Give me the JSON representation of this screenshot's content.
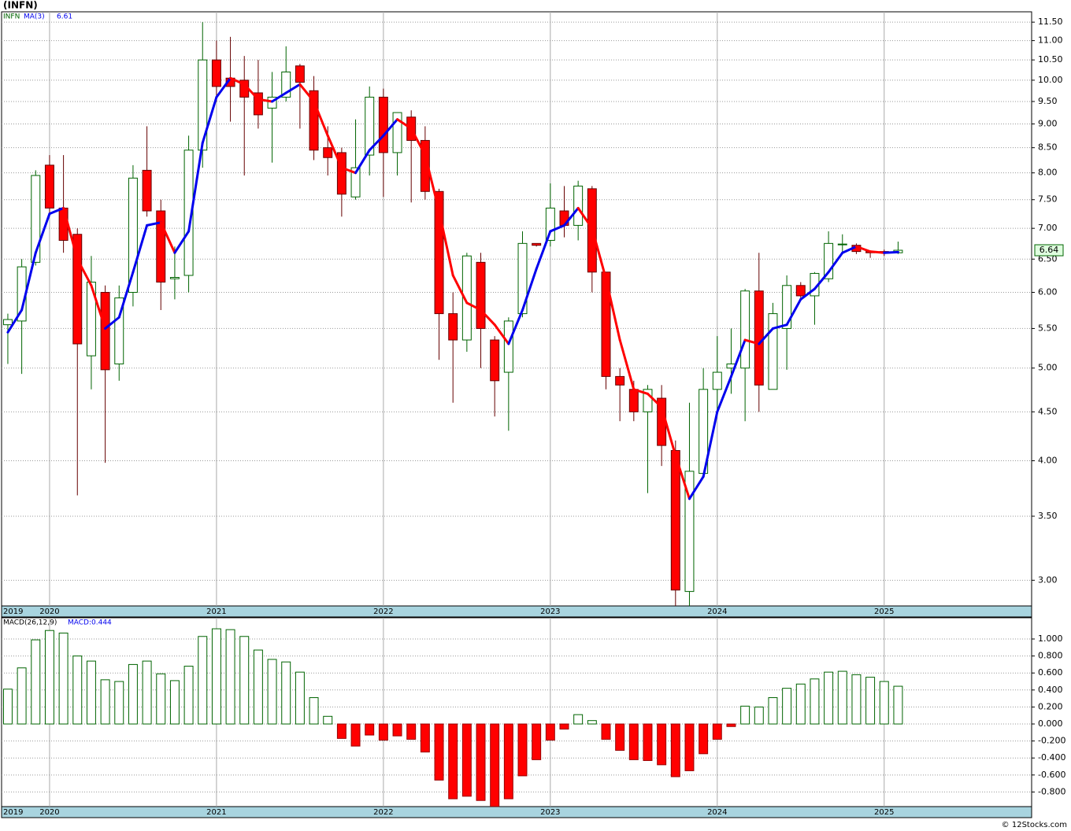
{
  "chart_data": [
    {
      "type": "candlestick",
      "title": "(INFN)",
      "name": "INFN",
      "log_scale": true,
      "grid": true,
      "up_color": "#006400",
      "down_color": "#ff0000",
      "open": [
        5.55,
        5.6,
        6.45,
        8.15,
        7.35,
        6.9,
        5.15,
        6.0,
        5.05,
        6.0,
        8.05,
        7.3,
        6.2,
        6.25,
        8.45,
        10.5,
        10.05,
        10.0,
        9.7,
        9.35,
        9.6,
        10.35,
        9.75,
        8.5,
        8.4,
        7.55,
        8.35,
        9.6,
        8.4,
        9.15,
        8.65,
        7.65,
        5.7,
        5.35,
        6.45,
        5.35,
        4.95,
        5.7,
        6.75,
        6.8,
        7.3,
        7.05,
        7.7,
        6.3,
        4.9,
        4.75,
        4.5,
        4.65,
        4.1,
        2.92,
        3.88,
        4.75,
        5.0,
        5.0,
        6.02,
        4.75,
        5.5,
        6.1,
        5.95,
        6.2,
        6.73,
        6.72,
        6.62,
        6.62,
        6.6
      ],
      "high": [
        5.7,
        6.5,
        8.05,
        8.35,
        8.35,
        7.0,
        6.55,
        6.1,
        6.1,
        8.15,
        8.95,
        7.5,
        6.7,
        8.75,
        11.5,
        11.0,
        11.1,
        10.6,
        10.5,
        10.2,
        10.85,
        10.4,
        10.1,
        8.95,
        8.5,
        9.1,
        9.85,
        9.8,
        9.25,
        9.3,
        8.95,
        7.7,
        6.0,
        6.6,
        6.6,
        5.4,
        5.65,
        6.95,
        6.75,
        7.8,
        7.75,
        7.85,
        7.75,
        6.3,
        5.0,
        4.85,
        4.8,
        4.8,
        4.2,
        4.6,
        5.0,
        5.4,
        5.5,
        6.05,
        6.6,
        5.85,
        6.25,
        6.15,
        6.3,
        6.95,
        6.9,
        6.75,
        6.63,
        6.65,
        6.78
      ],
      "low": [
        5.05,
        4.93,
        6.4,
        7.2,
        6.6,
        3.68,
        4.75,
        3.98,
        4.85,
        5.8,
        7.2,
        5.75,
        5.9,
        6.0,
        8.1,
        9.5,
        9.05,
        7.95,
        8.9,
        8.2,
        9.5,
        8.9,
        8.25,
        7.95,
        7.2,
        7.5,
        7.95,
        7.55,
        7.95,
        7.45,
        7.5,
        5.1,
        4.6,
        5.2,
        5.0,
        4.45,
        4.3,
        5.65,
        6.7,
        6.7,
        6.85,
        6.8,
        6.0,
        4.75,
        4.4,
        4.4,
        3.7,
        3.95,
        2.82,
        2.82,
        3.85,
        4.5,
        4.7,
        4.4,
        4.5,
        4.75,
        4.98,
        5.9,
        5.55,
        6.15,
        6.6,
        6.58,
        6.52,
        6.55,
        6.58
      ],
      "close": [
        5.62,
        6.38,
        7.95,
        7.35,
        6.8,
        5.3,
        6.15,
        4.98,
        5.92,
        7.9,
        7.3,
        6.15,
        6.22,
        8.45,
        10.5,
        9.85,
        9.85,
        9.6,
        9.2,
        9.6,
        10.2,
        9.95,
        8.45,
        8.3,
        7.6,
        8.1,
        9.6,
        8.4,
        9.25,
        8.65,
        7.65,
        5.7,
        5.35,
        6.55,
        5.5,
        4.85,
        5.6,
        6.75,
        6.72,
        7.35,
        7.05,
        7.75,
        6.3,
        4.9,
        4.8,
        4.5,
        4.75,
        4.15,
        2.93,
        3.9,
        4.75,
        4.95,
        5.05,
        6.02,
        4.8,
        5.7,
        6.1,
        5.95,
        6.28,
        6.75,
        6.74,
        6.62,
        6.6,
        6.6,
        6.64
      ],
      "series": [
        {
          "name": "MA(3)",
          "color": "#0000ee",
          "down_color": "#ff0000",
          "values": [
            5.45,
            5.75,
            6.6,
            7.25,
            7.35,
            6.5,
            6.1,
            5.5,
            5.65,
            6.3,
            7.05,
            7.1,
            6.6,
            6.95,
            8.6,
            9.6,
            10.05,
            9.9,
            9.55,
            9.5,
            9.7,
            9.9,
            9.5,
            8.75,
            8.1,
            8.0,
            8.45,
            8.75,
            9.1,
            8.9,
            8.35,
            7.3,
            6.25,
            5.85,
            5.75,
            5.55,
            5.3,
            5.75,
            6.35,
            6.95,
            7.05,
            7.35,
            7.0,
            6.2,
            5.35,
            4.75,
            4.7,
            4.55,
            4.05,
            3.65,
            3.85,
            4.5,
            4.9,
            5.35,
            5.3,
            5.5,
            5.55,
            5.9,
            6.05,
            6.3,
            6.6,
            6.7,
            6.62,
            6.6,
            6.61
          ]
        }
      ],
      "xlim": [
        -0.45,
        73.6
      ],
      "xticks": [
        {
          "value": -0.45,
          "label": "2019"
        },
        {
          "value": 3,
          "label": "2020"
        },
        {
          "value": 15,
          "label": "2021"
        },
        {
          "value": 27,
          "label": "2022"
        },
        {
          "value": 39,
          "label": "2023"
        },
        {
          "value": 51,
          "label": "2024"
        },
        {
          "value": 63,
          "label": "2025"
        }
      ],
      "ylim": [
        2.82,
        11.79
      ],
      "yticks": [
        {
          "value": 3,
          "label": "3.00"
        },
        {
          "value": 3.5,
          "label": "3.50"
        },
        {
          "value": 4,
          "label": "4.00"
        },
        {
          "value": 4.5,
          "label": "4.50"
        },
        {
          "value": 5,
          "label": "5.00"
        },
        {
          "value": 5.5,
          "label": "5.50"
        },
        {
          "value": 6,
          "label": "6.00"
        },
        {
          "value": 6.5,
          "label": "6.50"
        },
        {
          "value": 7,
          "label": "7.00"
        },
        {
          "value": 7.5,
          "label": "7.50"
        },
        {
          "value": 8,
          "label": "8.00"
        },
        {
          "value": 8.5,
          "label": "8.50"
        },
        {
          "value": 9,
          "label": "9.00"
        },
        {
          "value": 9.5,
          "label": "9.50"
        },
        {
          "value": 10,
          "label": "10.00"
        },
        {
          "value": 10.5,
          "label": "10.50"
        },
        {
          "value": 11,
          "label": "11.00"
        },
        {
          "value": 11.5,
          "label": "11.50"
        }
      ]
    },
    {
      "type": "bar",
      "name": "MACD(26,12,9)",
      "value_label": "MACD:0.444",
      "up_color": "#006400",
      "down_color": "#ff0000",
      "grid": true,
      "values": [
        0.41,
        0.66,
        0.99,
        1.1,
        1.07,
        0.8,
        0.74,
        0.52,
        0.5,
        0.7,
        0.74,
        0.59,
        0.51,
        0.68,
        1.03,
        1.12,
        1.11,
        1.03,
        0.87,
        0.76,
        0.73,
        0.61,
        0.31,
        0.09,
        -0.17,
        -0.26,
        -0.13,
        -0.19,
        -0.14,
        -0.18,
        -0.33,
        -0.66,
        -0.88,
        -0.85,
        -0.9,
        -0.97,
        -0.88,
        -0.61,
        -0.42,
        -0.19,
        -0.06,
        0.11,
        0.04,
        -0.18,
        -0.31,
        -0.42,
        -0.43,
        -0.48,
        -0.62,
        -0.55,
        -0.35,
        -0.18,
        -0.03,
        0.21,
        0.2,
        0.31,
        0.42,
        0.47,
        0.53,
        0.61,
        0.62,
        0.58,
        0.55,
        0.5,
        0.444
      ],
      "ylim": [
        -0.972,
        1.25
      ],
      "yticks": [
        {
          "value": -0.8,
          "label": "-0.800"
        },
        {
          "value": -0.6,
          "label": "-0.600"
        },
        {
          "value": -0.4,
          "label": "-0.400"
        },
        {
          "value": -0.2,
          "label": "-0.200"
        },
        {
          "value": 0,
          "label": "0.000"
        },
        {
          "value": 0.2,
          "label": "0.200"
        },
        {
          "value": 0.4,
          "label": "0.400"
        },
        {
          "value": 0.6,
          "label": "0.600"
        },
        {
          "value": 0.8,
          "label": "0.800"
        },
        {
          "value": 1,
          "label": "1.000"
        }
      ]
    }
  ],
  "footer": "© 12Stocks.com"
}
